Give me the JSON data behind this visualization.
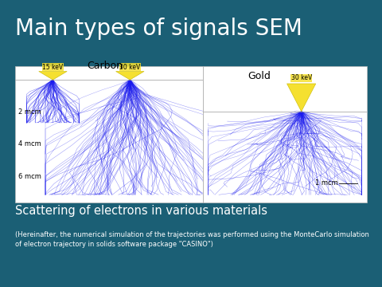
{
  "bg_color": "#1b5f75",
  "title": "Main types of signals SEM",
  "title_color": "#ffffff",
  "title_fontsize": 20,
  "subtitle": "Scattering of electrons in various materials",
  "subtitle_color": "#ffffff",
  "subtitle_fontsize": 10.5,
  "footnote": "(Hereinafter, the numerical simulation of the trajectories was performed using the MonteCarlo simulation\nof electron trajectory in solids software package \"CASINO\")",
  "footnote_color": "#ffffff",
  "footnote_fontsize": 6.0,
  "carbon_label": "Carbon",
  "gold_label": "Gold",
  "label_fontsize": 9,
  "carbon_cone1_label": "15 keV",
  "carbon_cone2_label": "30 keV",
  "gold_cone_label": "30 keV",
  "cone_label_fontsize": 5.5,
  "cone_color": "#f5e030",
  "carbon_depth_labels": [
    "2 mcm",
    "4 mcm",
    "6 mcm"
  ],
  "gold_depth_label": "1 mcm",
  "depth_label_fontsize": 6.0,
  "scatter_color": "#1a1aee",
  "scatter_color_light": "#6666cc"
}
